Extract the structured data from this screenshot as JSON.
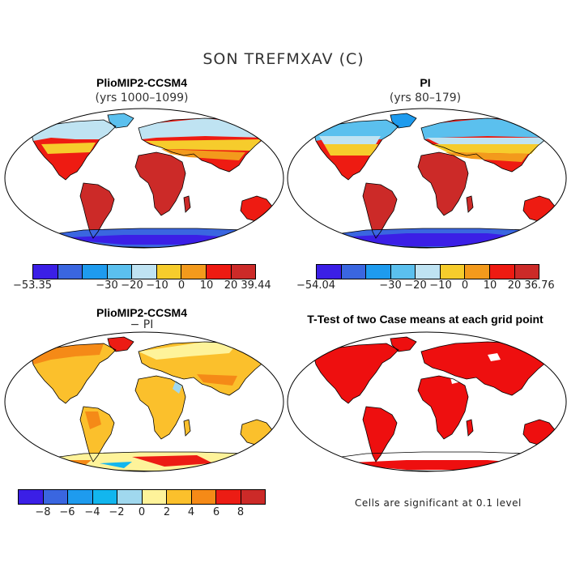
{
  "title": "SON TREFMXAV (C)",
  "panels": [
    {
      "title": "PlioMIP2-CCSM4",
      "subtitle": "(yrs 1000–1099)"
    },
    {
      "title": "PI",
      "subtitle": "(yrs 80–179)"
    },
    {
      "title": "PlioMIP2-CCSM4",
      "subtitle": "− PI"
    },
    {
      "title": "T-Test of two Case means at each grid point",
      "subtitle": ""
    }
  ],
  "colorbars": {
    "tl": {
      "min": "−53.35",
      "max": "39.44",
      "ticks": [
        "−30",
        "−20",
        "−10",
        "0",
        "10",
        "20"
      ]
    },
    "tr": {
      "min": "−54.04",
      "max": "36.76",
      "ticks": [
        "−30",
        "−20",
        "−10",
        "0",
        "10",
        "20"
      ]
    },
    "bl": {
      "ticks": [
        "−8",
        "−6",
        "−4",
        "−2",
        "0",
        "2",
        "4",
        "6",
        "8"
      ]
    }
  },
  "note": "Cells are significant at 0.1 level",
  "colors": {
    "abs_scale": [
      "#3b1fe6",
      "#3a66e0",
      "#1e9bee",
      "#5bc0ee",
      "#bfe3f2",
      "#f6cc2c",
      "#f39a1c",
      "#ee1b12",
      "#cc2a28"
    ],
    "diff_scale": [
      "#3b1fe6",
      "#3a66e0",
      "#1e9bee",
      "#12b6ee",
      "#a0d8ee",
      "#fef39a",
      "#fbc02c",
      "#f58a17",
      "#ec1c14",
      "#cc2a28"
    ],
    "significant": "#ee0f0f"
  }
}
